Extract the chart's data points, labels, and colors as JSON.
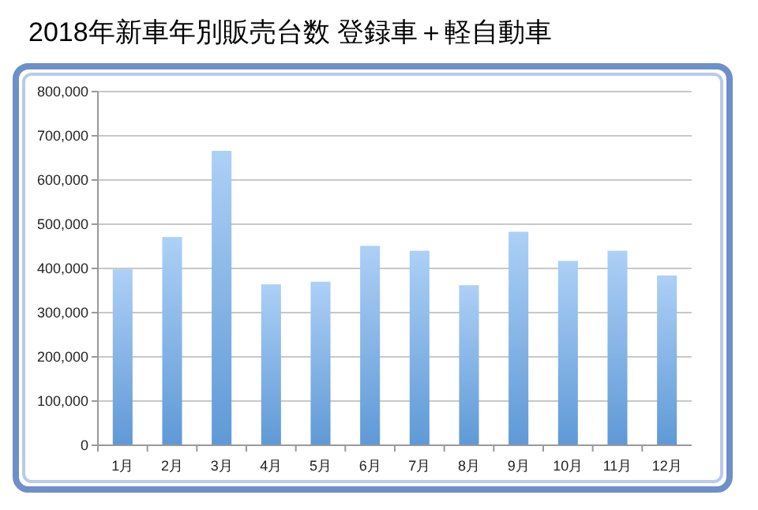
{
  "chart_data": {
    "type": "bar",
    "title": "2018年新車年別販売台数  登録車＋軽自動車",
    "categories": [
      "1月",
      "2月",
      "3月",
      "4月",
      "5月",
      "6月",
      "7月",
      "8月",
      "9月",
      "10月",
      "11月",
      "12月"
    ],
    "values": [
      398000,
      471000,
      666000,
      364000,
      370000,
      451000,
      440000,
      362000,
      483000,
      417000,
      440000,
      384000
    ],
    "color": "#6aaaee",
    "ylim": [
      0,
      800000
    ],
    "yticks": [
      {
        "value": 0,
        "label": "0"
      },
      {
        "value": 100000,
        "label": "100,000"
      },
      {
        "value": 200000,
        "label": "200,000"
      },
      {
        "value": 300000,
        "label": "300,000"
      },
      {
        "value": 400000,
        "label": "400,000"
      },
      {
        "value": 500000,
        "label": "500,000"
      },
      {
        "value": 600000,
        "label": "600,000"
      },
      {
        "value": 700000,
        "label": "700,000"
      },
      {
        "value": 800000,
        "label": "800,000"
      }
    ],
    "grid": "y"
  }
}
